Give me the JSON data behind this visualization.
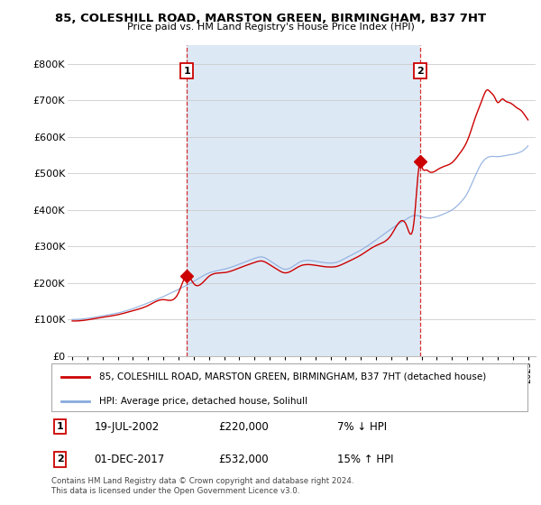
{
  "title": "85, COLESHILL ROAD, MARSTON GREEN, BIRMINGHAM, B37 7HT",
  "subtitle": "Price paid vs. HM Land Registry's House Price Index (HPI)",
  "legend_line1": "85, COLESHILL ROAD, MARSTON GREEN, BIRMINGHAM, B37 7HT (detached house)",
  "legend_line2": "HPI: Average price, detached house, Solihull",
  "footer1": "Contains HM Land Registry data © Crown copyright and database right 2024.",
  "footer2": "This data is licensed under the Open Government Licence v3.0.",
  "annotation1_date": "19-JUL-2002",
  "annotation1_price": "£220,000",
  "annotation1_hpi": "7% ↓ HPI",
  "annotation2_date": "01-DEC-2017",
  "annotation2_price": "£532,000",
  "annotation2_hpi": "15% ↑ HPI",
  "red_color": "#cc0000",
  "blue_color": "#88aadd",
  "shade_color": "#dde8f5",
  "ylim": [
    0,
    850000
  ],
  "yticks": [
    0,
    100000,
    200000,
    300000,
    400000,
    500000,
    600000,
    700000,
    800000
  ],
  "ytick_labels": [
    "£0",
    "£100K",
    "£200K",
    "£300K",
    "£400K",
    "£500K",
    "£600K",
    "£700K",
    "£800K"
  ],
  "sale1_year": 2002.55,
  "sale1_price": 220000,
  "sale2_year": 2017.92,
  "sale2_price": 532000,
  "vline1_year": 2002.55,
  "vline2_year": 2017.92,
  "xmin": 1995,
  "xmax": 2025
}
